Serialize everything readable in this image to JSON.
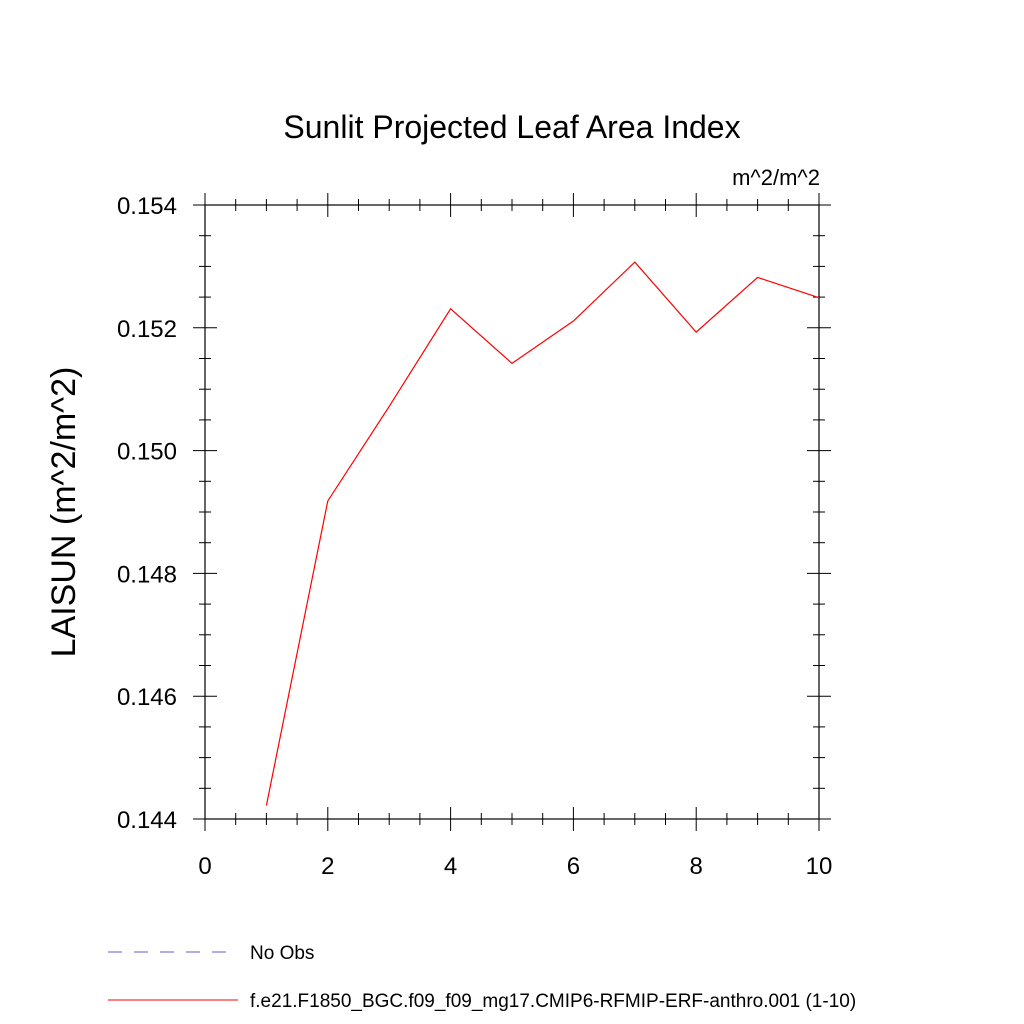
{
  "chart_data": {
    "type": "line",
    "title": "Sunlit Projected Leaf Area Index",
    "units": "m^2/m^2",
    "ylabel": "LAISUN  (m^2/m^2)",
    "xlabel": "",
    "xlim": [
      0,
      10
    ],
    "ylim": [
      0.144,
      0.154
    ],
    "x_ticks": [
      0,
      2,
      4,
      6,
      8,
      10
    ],
    "x_tick_labels": [
      "0",
      "2",
      "4",
      "6",
      "8",
      "10"
    ],
    "y_ticks": [
      0.144,
      0.146,
      0.148,
      0.15,
      0.152,
      0.154
    ],
    "y_tick_labels": [
      "0.144",
      "0.146",
      "0.148",
      "0.150",
      "0.152",
      "0.154"
    ],
    "grid": false,
    "legend_position": "bottom-left",
    "series": [
      {
        "name": "No Obs",
        "style": "dashed",
        "color": "#6a5acd",
        "x": [],
        "y": []
      },
      {
        "name": "f.e21.F1850_BGC.f09_f09_mg17.CMIP6-RFMIP-ERF-anthro.001 (1-10)",
        "style": "solid",
        "color": "#ff0000",
        "x": [
          1,
          2,
          3,
          4,
          5,
          6,
          7,
          8,
          9,
          10
        ],
        "y": [
          0.14422,
          0.14918,
          0.15072,
          0.15231,
          0.15142,
          0.15211,
          0.15307,
          0.15193,
          0.15282,
          0.15249
        ]
      }
    ]
  }
}
